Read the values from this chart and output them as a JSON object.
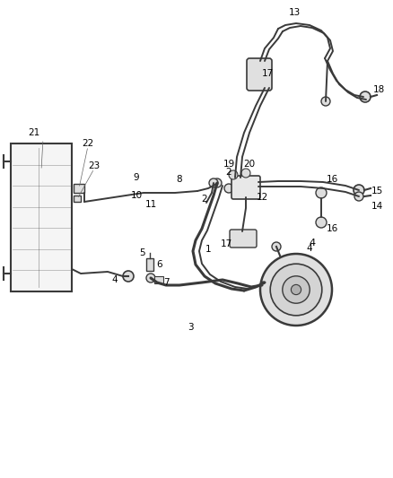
{
  "bg_color": "#ffffff",
  "line_color": "#3a3a3a",
  "fig_width": 4.38,
  "fig_height": 5.33,
  "dpi": 100,
  "label_fs": 7.5,
  "lw_thick": 2.2,
  "lw_med": 1.4,
  "lw_thin": 0.9
}
